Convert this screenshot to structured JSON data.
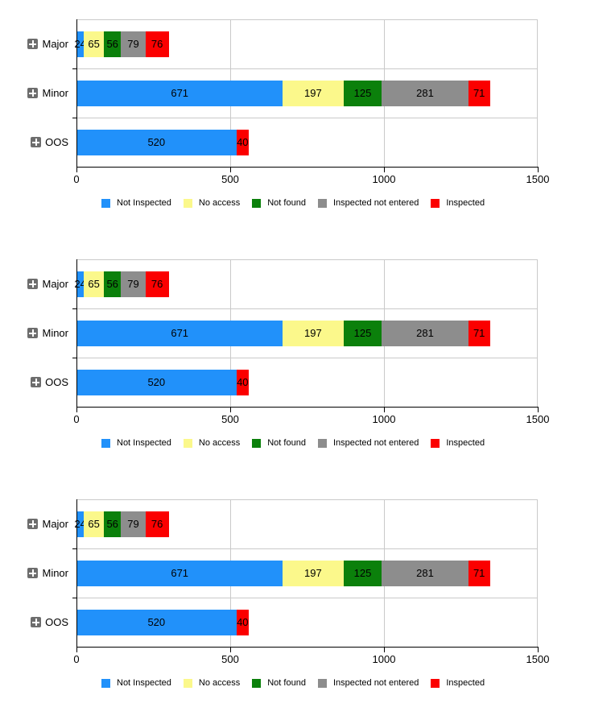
{
  "page": {
    "background": "#ffffff"
  },
  "layout_colors": {
    "axis": "#000000",
    "grid": "#c9c9c9",
    "expand_icon_bg": "#6d6d6d"
  },
  "chart_data": [
    {
      "type": "bar",
      "orientation": "horizontal",
      "stacked": true,
      "title": "",
      "categories": [
        "Major",
        "Minor",
        "OOS"
      ],
      "series": [
        {
          "name": "Not Inspected",
          "color": "#2191fa",
          "values": [
            24,
            671,
            520
          ]
        },
        {
          "name": "No access",
          "color": "#fbf88b",
          "values": [
            65,
            197,
            0
          ]
        },
        {
          "name": "Not found",
          "color": "#0b800b",
          "values": [
            56,
            125,
            0
          ]
        },
        {
          "name": "Inspected not entered",
          "color": "#8d8d8d",
          "values": [
            79,
            281,
            0
          ]
        },
        {
          "name": "Inspected",
          "color": "#fb0000",
          "values": [
            76,
            71,
            40
          ]
        }
      ],
      "xlim": [
        0,
        1500
      ],
      "xticks": [
        "0",
        "500",
        "1000",
        "1500"
      ],
      "legend_position": "bottom",
      "grid": true,
      "expandable_rows": true
    },
    {
      "type": "bar",
      "orientation": "horizontal",
      "stacked": true,
      "title": "",
      "categories": [
        "Major",
        "Minor",
        "OOS"
      ],
      "series": [
        {
          "name": "Not Inspected",
          "color": "#2191fa",
          "values": [
            24,
            671,
            520
          ]
        },
        {
          "name": "No access",
          "color": "#fbf88b",
          "values": [
            65,
            197,
            0
          ]
        },
        {
          "name": "Not found",
          "color": "#0b800b",
          "values": [
            56,
            125,
            0
          ]
        },
        {
          "name": "Inspected not entered",
          "color": "#8d8d8d",
          "values": [
            79,
            281,
            0
          ]
        },
        {
          "name": "Inspected",
          "color": "#fb0000",
          "values": [
            76,
            71,
            40
          ]
        }
      ],
      "xlim": [
        0,
        1500
      ],
      "xticks": [
        "0",
        "500",
        "1000",
        "1500"
      ],
      "legend_position": "bottom",
      "grid": true,
      "expandable_rows": true
    },
    {
      "type": "bar",
      "orientation": "horizontal",
      "stacked": true,
      "title": "",
      "categories": [
        "Major",
        "Minor",
        "OOS"
      ],
      "series": [
        {
          "name": "Not Inspected",
          "color": "#2191fa",
          "values": [
            24,
            671,
            520
          ]
        },
        {
          "name": "No access",
          "color": "#fbf88b",
          "values": [
            65,
            197,
            0
          ]
        },
        {
          "name": "Not found",
          "color": "#0b800b",
          "values": [
            56,
            125,
            0
          ]
        },
        {
          "name": "Inspected not entered",
          "color": "#8d8d8d",
          "values": [
            79,
            281,
            0
          ]
        },
        {
          "name": "Inspected",
          "color": "#fb0000",
          "values": [
            76,
            71,
            40
          ]
        }
      ],
      "xlim": [
        0,
        1500
      ],
      "xticks": [
        "0",
        "500",
        "1000",
        "1500"
      ],
      "legend_position": "bottom",
      "grid": true,
      "expandable_rows": true
    }
  ]
}
